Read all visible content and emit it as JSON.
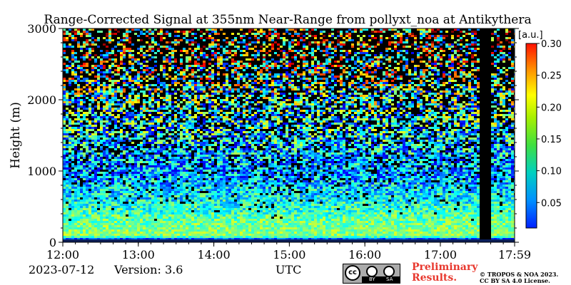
{
  "chart_data": {
    "type": "heatmap",
    "title": "Range-Corrected Signal at 355nm Near-Range from pollyxt_noa at Antikythera",
    "ylabel": "Height (m)",
    "xlabel": "UTC",
    "x_ticks": [
      "12:00",
      "13:00",
      "14:00",
      "15:00",
      "16:00",
      "17:00",
      "17:59"
    ],
    "y_ticks": [
      "0",
      "1000",
      "2000",
      "3000"
    ],
    "xlim": [
      "12:00",
      "17:59"
    ],
    "ylim": [
      0,
      3000
    ],
    "colorbar": {
      "unit": "[a.u.]",
      "min": 0.01,
      "max": 0.3,
      "ticks": [
        "0.05",
        "0.10",
        "0.15",
        "0.20",
        "0.25",
        "0.30"
      ],
      "colormap": "jet"
    },
    "data_gap": {
      "start": "17:30",
      "end": "17:40"
    },
    "approx_profile": [
      {
        "height": 50,
        "value": 0.05
      },
      {
        "height": 100,
        "value": 0.16
      },
      {
        "height": 300,
        "value": 0.15
      },
      {
        "height": 600,
        "value": 0.12
      },
      {
        "height": 1000,
        "value": 0.09
      },
      {
        "height": 1500,
        "value": 0.11
      },
      {
        "height": 2000,
        "value": 0.13
      },
      {
        "height": 2500,
        "value": 0.16
      },
      {
        "height": 3000,
        "value": 0.2
      }
    ]
  },
  "footer": {
    "date": "2023-07-12",
    "version": "Version: 3.6",
    "time_label": "UTC",
    "license_badge": {
      "cc": "cc",
      "by": "BY",
      "sa": "SA"
    },
    "preliminary": [
      "Preliminary",
      "Results."
    ],
    "copyright": [
      "© TROPOS & NOA 2023.",
      "CC BY SA 4.0 License."
    ]
  }
}
